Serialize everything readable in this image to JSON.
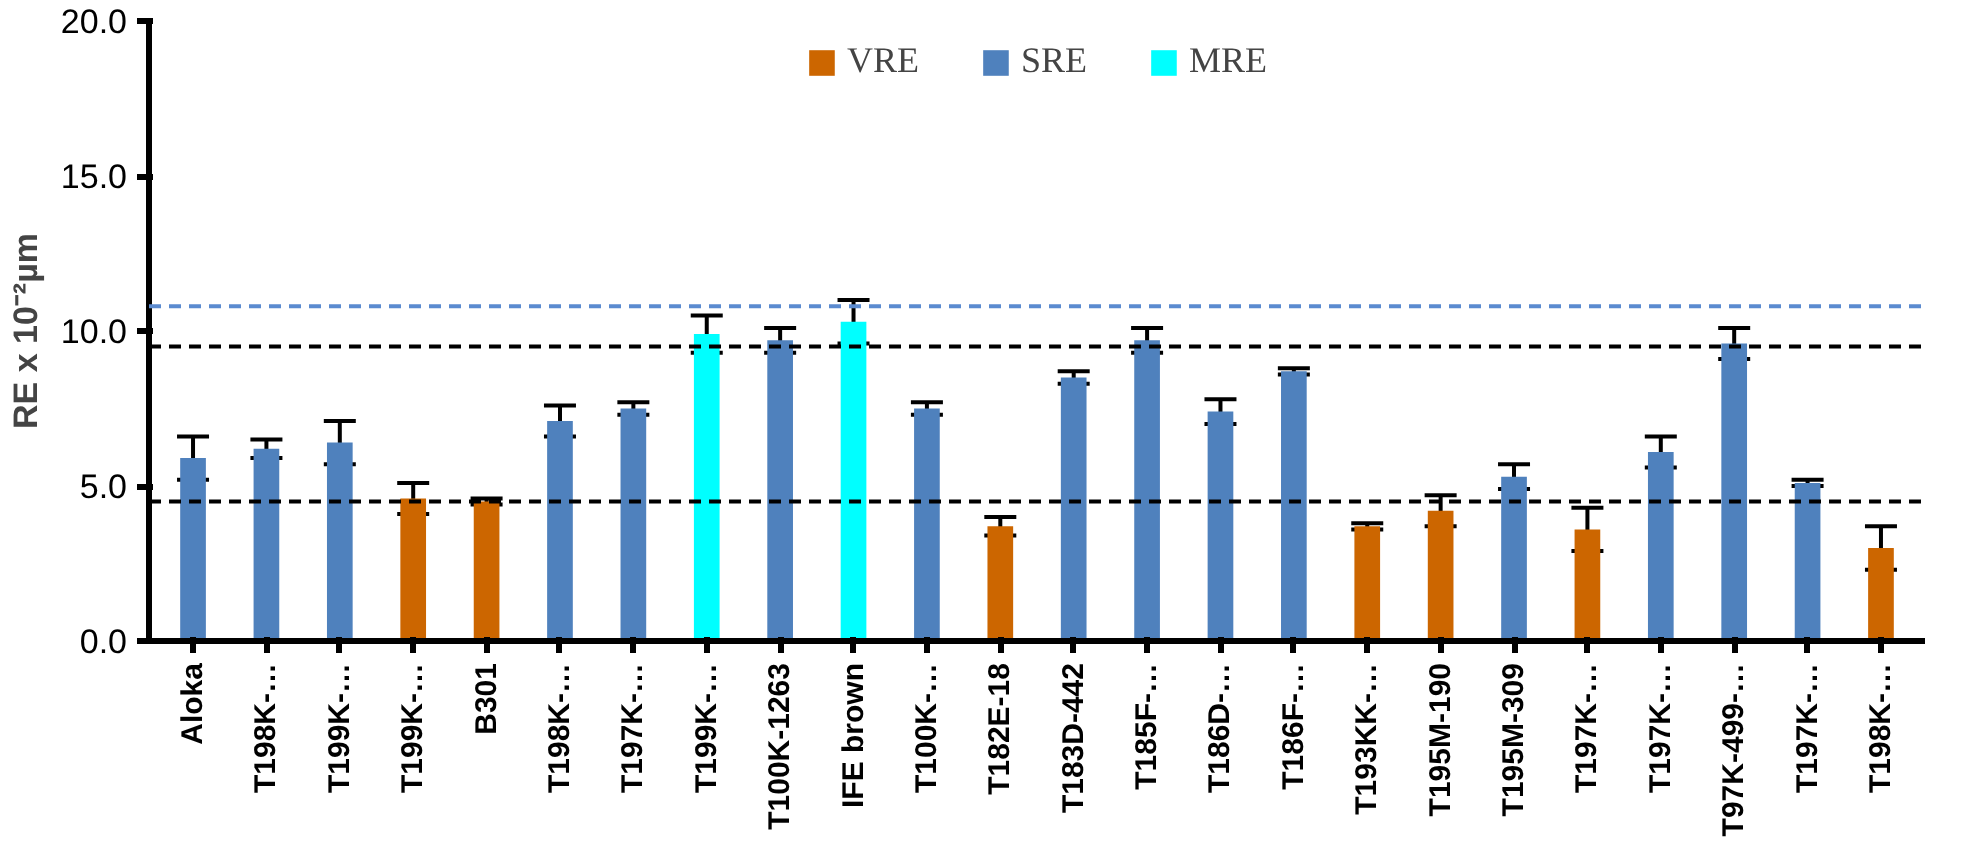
{
  "chart_data": {
    "type": "bar",
    "ylabel": "RE x 10⁻²µm",
    "categories": [
      "Aloka",
      "T198K-…",
      "T199K-…",
      "T199K-…",
      "B301",
      "T198K-…",
      "T197K-…",
      "T199K-…",
      "T100K-1263",
      "IFE brown",
      "T100K-…",
      "T182E-18",
      "T183D-442",
      "T185F-…",
      "T186D-…",
      "T186F-…",
      "T193KK-…",
      "T195M-190",
      "T195M-309",
      "T197K-…",
      "T197K-…",
      "T97K-499-…",
      "T197K-…",
      "T198K-…"
    ],
    "series": [
      {
        "name": "VRE",
        "color": "#cc6600",
        "values": [
          null,
          null,
          null,
          4.6,
          4.5,
          null,
          null,
          null,
          null,
          null,
          null,
          3.7,
          null,
          null,
          null,
          null,
          3.7,
          4.2,
          null,
          3.6,
          null,
          null,
          null,
          3.0
        ],
        "errors": [
          null,
          null,
          null,
          0.5,
          0.1,
          null,
          null,
          null,
          null,
          null,
          null,
          0.3,
          null,
          null,
          null,
          null,
          0.1,
          0.5,
          null,
          0.7,
          null,
          null,
          null,
          0.7
        ]
      },
      {
        "name": "SRE",
        "color": "#4f81bd",
        "values": [
          5.9,
          6.2,
          6.4,
          null,
          null,
          7.1,
          7.5,
          null,
          9.7,
          null,
          7.5,
          null,
          8.5,
          9.7,
          7.4,
          8.7,
          null,
          null,
          5.3,
          null,
          6.1,
          9.6,
          5.1,
          null
        ],
        "errors": [
          0.7,
          0.3,
          0.7,
          null,
          null,
          0.5,
          0.2,
          null,
          0.4,
          null,
          0.2,
          null,
          0.2,
          0.4,
          0.4,
          0.1,
          null,
          null,
          0.4,
          null,
          0.5,
          0.5,
          0.1,
          null
        ]
      },
      {
        "name": "MRE",
        "color": "#00ffff",
        "values": [
          null,
          null,
          null,
          null,
          null,
          null,
          null,
          9.9,
          null,
          10.3,
          null,
          null,
          null,
          null,
          null,
          null,
          null,
          null,
          null,
          null,
          null,
          null,
          null,
          null
        ],
        "errors": [
          null,
          null,
          null,
          null,
          null,
          null,
          null,
          0.6,
          null,
          0.7,
          null,
          null,
          null,
          null,
          null,
          null,
          null,
          null,
          null,
          null,
          null,
          null,
          null,
          null
        ]
      }
    ],
    "ylim": [
      0,
      20
    ],
    "yticks": [
      {
        "value": 0,
        "label": "0.0"
      },
      {
        "value": 5,
        "label": "5.0"
      },
      {
        "value": 10,
        "label": "10.0"
      },
      {
        "value": 15,
        "label": "15.0"
      },
      {
        "value": 20,
        "label": "20.0"
      }
    ],
    "ref_lines": [
      {
        "axis": "y",
        "value": 10.8,
        "label": null,
        "color": "#5b8bd0",
        "line_style": "dashed"
      },
      {
        "axis": "y",
        "value": 9.5,
        "label": null,
        "color": "#000000",
        "line_style": "dashed"
      },
      {
        "axis": "y",
        "value": 4.5,
        "label": null,
        "color": "#000000",
        "line_style": "dashed"
      }
    ],
    "grid": false,
    "legend": "top"
  }
}
